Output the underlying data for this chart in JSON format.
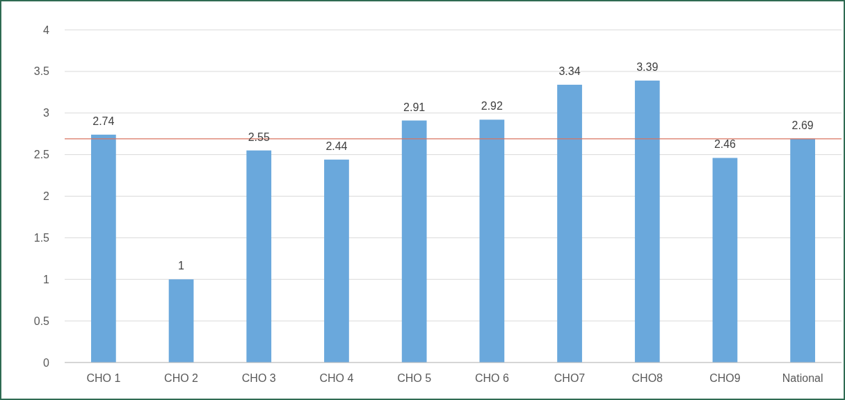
{
  "chart_data": {
    "type": "bar",
    "categories": [
      "CHO 1",
      "CHO 2",
      "CHO 3",
      "CHO 4",
      "CHO 5",
      "CHO 6",
      "CHO7",
      "CHO8",
      "CHO9",
      "National"
    ],
    "values": [
      2.74,
      1,
      2.55,
      2.44,
      2.91,
      2.92,
      3.34,
      3.39,
      2.46,
      2.69
    ],
    "color": "#6aa8dc",
    "ylim": [
      0,
      4
    ],
    "yticks": [
      0,
      {
        "value": 0.5,
        "label": "0.5"
      },
      1,
      {
        "value": 1.5,
        "label": "1.5"
      },
      2,
      {
        "value": 2.5,
        "label": "2.5"
      },
      3,
      {
        "value": 3.5,
        "label": "3.5"
      },
      4
    ],
    "grid": "y",
    "data_labels": true,
    "ref_lines": [
      {
        "axis": "y",
        "value": 2.69,
        "color": "#d9735f"
      }
    ]
  }
}
